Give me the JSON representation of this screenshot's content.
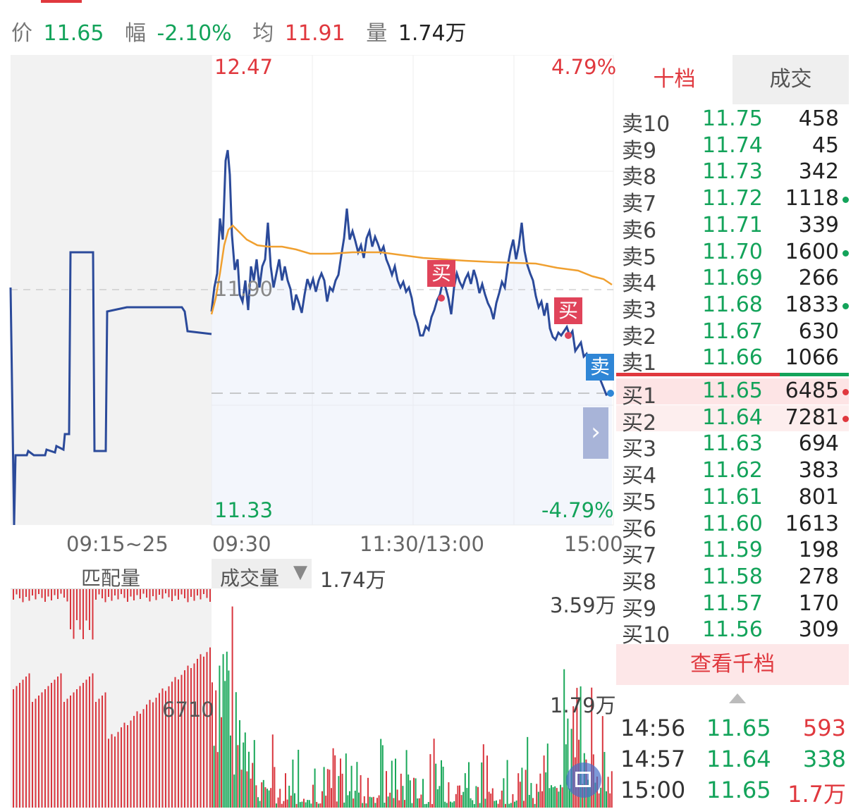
{
  "header": {
    "price_label": "价",
    "price_value": "11.65",
    "change_label": "幅",
    "change_value": "-2.10%",
    "avg_label": "均",
    "avg_value": "11.91",
    "volume_label": "量",
    "volume_value": "1.74万"
  },
  "chart": {
    "high_price": "12.47",
    "high_pct": "4.79%",
    "low_price": "11.33",
    "low_pct": "-4.79%",
    "ref_price": "11.90",
    "time_auction": "09:15~25",
    "time_open": "09:30",
    "time_mid": "11:30/13:00",
    "time_close": "15:00",
    "buy_marker": "买",
    "sell_marker": "卖",
    "next_arrow": "›"
  },
  "volume_panel": {
    "match_label": "匹配量",
    "dropdown_label": "成交量",
    "volume_value": "1.74万",
    "max_label": "3.59万",
    "mid_label": "1.79万",
    "auction_value": "6710"
  },
  "orderbook": {
    "tab_ten": "十档",
    "tab_trades": "成交",
    "asks": [
      {
        "label": "卖10",
        "price": "11.75",
        "volume": "458",
        "dot": ""
      },
      {
        "label": "卖9",
        "price": "11.74",
        "volume": "45",
        "dot": ""
      },
      {
        "label": "卖8",
        "price": "11.73",
        "volume": "342",
        "dot": ""
      },
      {
        "label": "卖7",
        "price": "11.72",
        "volume": "1118",
        "dot": "green"
      },
      {
        "label": "卖6",
        "price": "11.71",
        "volume": "339",
        "dot": ""
      },
      {
        "label": "卖5",
        "price": "11.70",
        "volume": "1600",
        "dot": "green"
      },
      {
        "label": "卖4",
        "price": "11.69",
        "volume": "266",
        "dot": ""
      },
      {
        "label": "卖3",
        "price": "11.68",
        "volume": "1833",
        "dot": "green"
      },
      {
        "label": "卖2",
        "price": "11.67",
        "volume": "630",
        "dot": ""
      },
      {
        "label": "卖1",
        "price": "11.66",
        "volume": "1066",
        "dot": ""
      }
    ],
    "bids": [
      {
        "label": "买1",
        "price": "11.65",
        "volume": "6485",
        "dot": "red"
      },
      {
        "label": "买2",
        "price": "11.64",
        "volume": "7281",
        "dot": "red"
      },
      {
        "label": "买3",
        "price": "11.63",
        "volume": "694",
        "dot": ""
      },
      {
        "label": "买4",
        "price": "11.62",
        "volume": "383",
        "dot": ""
      },
      {
        "label": "买5",
        "price": "11.61",
        "volume": "801",
        "dot": ""
      },
      {
        "label": "买6",
        "price": "11.60",
        "volume": "1613",
        "dot": ""
      },
      {
        "label": "买7",
        "price": "11.59",
        "volume": "198",
        "dot": ""
      },
      {
        "label": "买8",
        "price": "11.58",
        "volume": "278",
        "dot": ""
      },
      {
        "label": "买9",
        "price": "11.57",
        "volume": "170",
        "dot": ""
      },
      {
        "label": "买10",
        "price": "11.56",
        "volume": "309",
        "dot": ""
      }
    ],
    "view_thousand": "查看千档",
    "trades": [
      {
        "time": "14:56",
        "price": "11.65",
        "volume": "593",
        "vol_color": "red"
      },
      {
        "time": "14:57",
        "price": "11.64",
        "volume": "338",
        "vol_color": "green"
      },
      {
        "time": "15:00",
        "price": "11.65",
        "volume": "1.7万",
        "vol_color": "red"
      }
    ]
  },
  "colors": {
    "up_red": "#e0383e",
    "down_green": "#13a35a",
    "price_line": "#2b4a9a",
    "avg_line": "#f0a030",
    "sell_badge": "#2f86d6"
  }
}
